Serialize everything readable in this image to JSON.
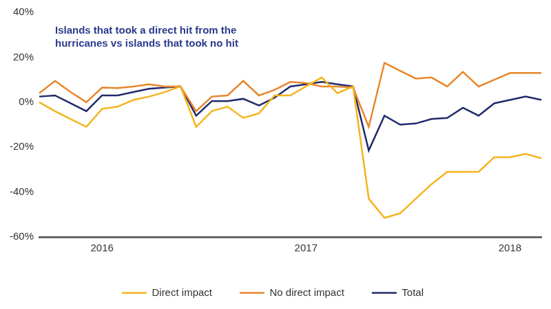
{
  "chart_data": {
    "type": "line",
    "title": "Islands that took a direct hit from the hurricanes vs islands that took no hit",
    "categories": [
      null,
      null,
      null,
      null,
      "2016",
      null,
      null,
      null,
      null,
      null,
      null,
      null,
      null,
      null,
      null,
      null,
      null,
      "2017",
      null,
      null,
      null,
      null,
      null,
      null,
      null,
      null,
      null,
      null,
      null,
      null,
      "2018",
      null,
      null
    ],
    "series": [
      {
        "name": "Direct impact",
        "color": "#f5b31c",
        "values": [
          0,
          -4,
          -7.5,
          -11,
          -3,
          -2,
          1,
          2.5,
          4.5,
          7,
          -11,
          -4,
          -2,
          -7,
          -5,
          3,
          3,
          7,
          11,
          4,
          7,
          -43,
          -51.5,
          -49.5,
          -43,
          -36.5,
          -31,
          -31,
          -31,
          -24.5,
          -24.5,
          -23,
          -25
        ]
      },
      {
        "name": "No direct impact",
        "color": "#e8862a",
        "values": [
          4,
          9.5,
          4.5,
          0,
          6.5,
          6.3,
          7,
          8,
          7,
          7,
          -4,
          2.5,
          3,
          9.5,
          3,
          5.5,
          9,
          8.5,
          7,
          7,
          6.5,
          -11,
          17.5,
          14,
          10.5,
          11,
          7,
          13.5,
          7,
          10,
          13,
          13,
          13
        ]
      },
      {
        "name": "Total",
        "color": "#1f2a6b",
        "values": [
          2.5,
          3,
          -0.5,
          -4,
          3,
          3,
          4.5,
          6,
          6.5,
          7,
          -6,
          0.5,
          0.5,
          1.5,
          -1.5,
          2,
          7,
          8,
          9,
          8,
          7,
          -21.5,
          -6,
          -10,
          -9.5,
          -7.5,
          -7,
          -2.5,
          -6,
          -0.5,
          1,
          2.5,
          1
        ]
      }
    ],
    "ylim": [
      -60,
      40
    ],
    "yticks": [
      {
        "value": -60,
        "label": "-60%"
      },
      {
        "value": -40,
        "label": "-40%"
      },
      {
        "value": -20,
        "label": "-20%"
      },
      {
        "value": 0,
        "label": "0%"
      },
      {
        "value": 20,
        "label": "20%"
      },
      {
        "value": 40,
        "label": "40%"
      }
    ],
    "grid": false,
    "legend": "bottom"
  }
}
